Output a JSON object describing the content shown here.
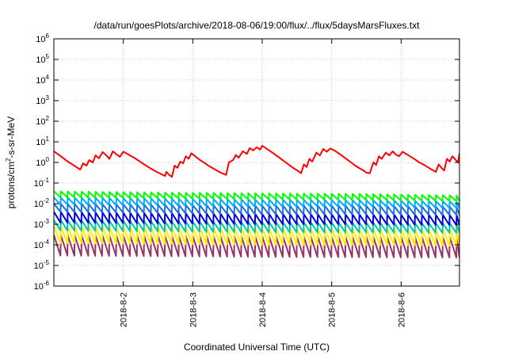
{
  "chart_data": {
    "type": "line",
    "title": "/data/run/goesPlots/archive/2018-08-06/19:00/flux/../flux/5daysMarsFluxes.txt",
    "xlabel": "Coordinated Universal Time (UTC)",
    "ylabel": "protons/cm2-s-sr-MeV",
    "ylabel_parts": {
      "pre": "protons/cm",
      "sup": "2",
      "post": "-s-sr-MeV"
    },
    "yscale": "log",
    "ylim": [
      1e-06,
      1000000.0
    ],
    "y_tick_exponents": [
      -6,
      -5,
      -4,
      -3,
      -2,
      -1,
      0,
      1,
      2,
      3,
      4,
      5,
      6
    ],
    "y_tick_base": "10",
    "xlim_days": [
      1.0,
      6.84
    ],
    "x_ticks": [
      {
        "day": 2,
        "label": "2018-8-2"
      },
      {
        "day": 3,
        "label": "2018-8-3"
      },
      {
        "day": 4,
        "label": "2018-8-4"
      },
      {
        "day": 5,
        "label": "2018-8-5"
      },
      {
        "day": 6,
        "label": "2018-8-6"
      }
    ],
    "grid": true,
    "series": [
      {
        "color": "#ff0000",
        "profile": [
          [
            1.0,
            3.5
          ],
          [
            1.04,
            2.8
          ],
          [
            1.1,
            2.0
          ],
          [
            1.16,
            1.4
          ],
          [
            1.22,
            1.0
          ],
          [
            1.28,
            0.75
          ],
          [
            1.34,
            0.55
          ],
          [
            1.38,
            0.45
          ],
          [
            1.42,
            0.9
          ],
          [
            1.47,
            0.7
          ],
          [
            1.51,
            1.3
          ],
          [
            1.56,
            1.0
          ],
          [
            1.6,
            2.2
          ],
          [
            1.65,
            1.6
          ],
          [
            1.7,
            3.2
          ],
          [
            1.75,
            2.3
          ],
          [
            1.8,
            1.5
          ],
          [
            1.85,
            3.5
          ],
          [
            1.9,
            2.5
          ],
          [
            1.95,
            1.9
          ],
          [
            2.0,
            3.3
          ],
          [
            2.06,
            2.6
          ],
          [
            2.12,
            2.0
          ],
          [
            2.18,
            1.5
          ],
          [
            2.24,
            1.1
          ],
          [
            2.3,
            0.8
          ],
          [
            2.36,
            0.6
          ],
          [
            2.42,
            0.45
          ],
          [
            2.48,
            0.35
          ],
          [
            2.54,
            0.28
          ],
          [
            2.6,
            0.22
          ],
          [
            2.62,
            0.35
          ],
          [
            2.66,
            0.25
          ],
          [
            2.7,
            0.2
          ],
          [
            2.74,
            0.7
          ],
          [
            2.78,
            0.55
          ],
          [
            2.82,
            1.1
          ],
          [
            2.86,
            0.9
          ],
          [
            2.9,
            2.0
          ],
          [
            2.94,
            1.5
          ],
          [
            2.98,
            2.8
          ],
          [
            3.02,
            2.2
          ],
          [
            3.06,
            1.7
          ],
          [
            3.12,
            1.2
          ],
          [
            3.18,
            0.9
          ],
          [
            3.24,
            0.65
          ],
          [
            3.3,
            0.5
          ],
          [
            3.36,
            0.38
          ],
          [
            3.42,
            0.3
          ],
          [
            3.48,
            0.25
          ],
          [
            3.52,
            1.0
          ],
          [
            3.58,
            1.3
          ],
          [
            3.62,
            2.3
          ],
          [
            3.66,
            1.7
          ],
          [
            3.72,
            3.5
          ],
          [
            3.78,
            2.6
          ],
          [
            3.82,
            5.0
          ],
          [
            3.87,
            3.8
          ],
          [
            3.92,
            5.5
          ],
          [
            3.97,
            4.2
          ],
          [
            4.0,
            6.5
          ],
          [
            4.05,
            5.0
          ],
          [
            4.1,
            3.8
          ],
          [
            4.16,
            2.8
          ],
          [
            4.22,
            2.0
          ],
          [
            4.28,
            1.4
          ],
          [
            4.34,
            1.0
          ],
          [
            4.4,
            0.7
          ],
          [
            4.46,
            0.5
          ],
          [
            4.52,
            0.38
          ],
          [
            4.56,
            0.3
          ],
          [
            4.6,
            0.8
          ],
          [
            4.64,
            0.6
          ],
          [
            4.68,
            1.5
          ],
          [
            4.72,
            1.1
          ],
          [
            4.78,
            3.0
          ],
          [
            4.83,
            2.2
          ],
          [
            4.88,
            4.5
          ],
          [
            4.93,
            3.3
          ],
          [
            4.98,
            4.8
          ],
          [
            5.04,
            3.8
          ],
          [
            5.1,
            2.8
          ],
          [
            5.16,
            2.0
          ],
          [
            5.22,
            1.4
          ],
          [
            5.28,
            1.0
          ],
          [
            5.34,
            0.7
          ],
          [
            5.4,
            0.52
          ],
          [
            5.46,
            0.4
          ],
          [
            5.5,
            0.32
          ],
          [
            5.55,
            0.3
          ],
          [
            5.6,
            1.0
          ],
          [
            5.64,
            0.75
          ],
          [
            5.68,
            2.0
          ],
          [
            5.72,
            1.5
          ],
          [
            5.78,
            3.0
          ],
          [
            5.83,
            2.2
          ],
          [
            5.88,
            3.5
          ],
          [
            5.92,
            2.5
          ],
          [
            5.97,
            2.0
          ],
          [
            6.02,
            3.3
          ],
          [
            6.08,
            2.5
          ],
          [
            6.14,
            1.9
          ],
          [
            6.2,
            1.4
          ],
          [
            6.26,
            1.0
          ],
          [
            6.32,
            0.8
          ],
          [
            6.38,
            0.6
          ],
          [
            6.44,
            0.45
          ],
          [
            6.5,
            0.35
          ],
          [
            6.54,
            0.8
          ],
          [
            6.58,
            0.55
          ],
          [
            6.62,
            0.4
          ],
          [
            6.66,
            1.5
          ],
          [
            6.7,
            1.1
          ],
          [
            6.74,
            2.0
          ],
          [
            6.78,
            1.4
          ],
          [
            6.82,
            1.0
          ],
          [
            6.84,
            2.8
          ]
        ]
      },
      {
        "color": "#00ff00",
        "sawtooth": {
          "peak": [
            0.04,
            0.035,
            0.032,
            0.03,
            0.025
          ],
          "trough": [
            0.02,
            0.018,
            0.016,
            0.015,
            0.013
          ],
          "period": 0.1
        }
      },
      {
        "color": "#00aaff",
        "sawtooth": {
          "peak": [
            0.02,
            0.018,
            0.016,
            0.015,
            0.013
          ],
          "trough": [
            0.009,
            0.008,
            0.007,
            0.007,
            0.006
          ],
          "period": 0.1
        }
      },
      {
        "color": "#1a6fd6",
        "sawtooth": {
          "peak": [
            0.01,
            0.009,
            0.008,
            0.008,
            0.007
          ],
          "trough": [
            0.004,
            0.0035,
            0.003,
            0.003,
            0.0028
          ],
          "period": 0.1
        }
      },
      {
        "color": "#0000dd",
        "sawtooth": {
          "peak": [
            0.004,
            0.0035,
            0.0032,
            0.003,
            0.0028
          ],
          "trough": [
            0.0012,
            0.0011,
            0.001,
            0.001,
            0.0009
          ],
          "period": 0.1
        }
      },
      {
        "color": "#00c8a0",
        "sawtooth": {
          "peak": [
            0.0016,
            0.0014,
            0.0013,
            0.0012,
            0.0011
          ],
          "trough": [
            0.0005,
            0.00045,
            0.0004,
            0.0004,
            0.00038
          ],
          "period": 0.1
        }
      },
      {
        "color": "#ffee00",
        "sawtooth": {
          "peak": [
            0.0008,
            0.0007,
            0.00065,
            0.0006,
            0.00055
          ],
          "trough": [
            0.00012,
            0.00011,
            0.0001,
            0.0001,
            9e-05
          ],
          "period": 0.1
        }
      },
      {
        "color": "#993366",
        "sawtooth": {
          "peak": [
            0.0003,
            0.00028,
            0.00026,
            0.00025,
            0.00024
          ],
          "trough": [
            3e-05,
            2.8e-05,
            2.6e-05,
            2.5e-05,
            2.4e-05
          ],
          "period": 0.1
        }
      }
    ]
  }
}
